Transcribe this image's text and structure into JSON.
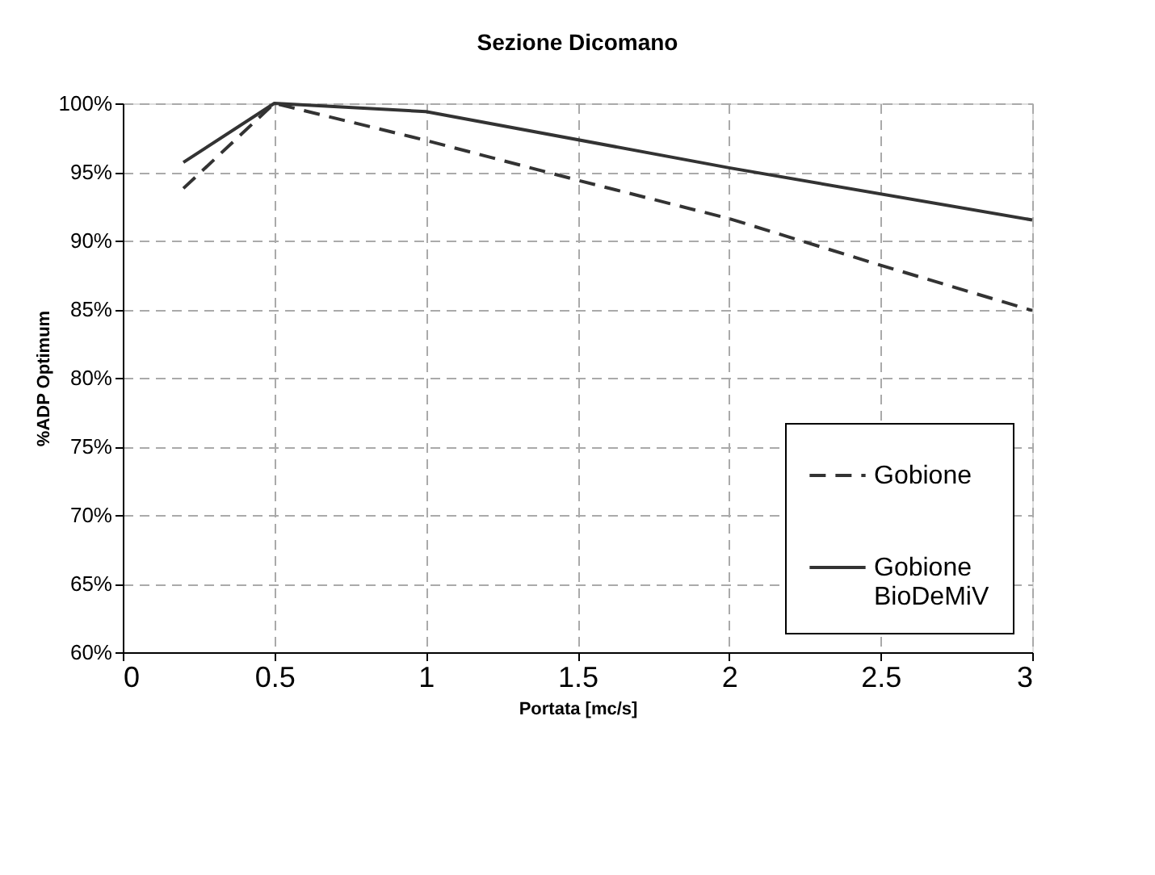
{
  "chart_data": {
    "type": "line",
    "title": "Sezione Dicomano",
    "xlabel": "Portata [mc/s]",
    "ylabel": "%ADP Optimum",
    "series": [
      {
        "name": "Gobione",
        "color": "#333333",
        "line_style": "dashed",
        "x": [
          0.2,
          0.5,
          1,
          1.5,
          2,
          2.5,
          3
        ],
        "values": [
          93.8,
          100,
          97.3,
          94.4,
          91.6,
          88.2,
          84.9
        ]
      },
      {
        "name": "Gobione BioDeMiV",
        "color": "#333333",
        "line_style": "solid",
        "x": [
          0.2,
          0.5,
          1,
          2,
          3
        ],
        "values": [
          95.7,
          100,
          99.4,
          95.3,
          91.5
        ]
      }
    ],
    "xlim": [
      0,
      3
    ],
    "xticks": [
      0,
      0.5,
      1,
      1.5,
      2,
      2.5,
      3
    ],
    "ylim": [
      60,
      100
    ],
    "yticks": [
      {
        "value": 60,
        "label": "60%"
      },
      {
        "value": 65,
        "label": "65%"
      },
      {
        "value": 70,
        "label": "70%"
      },
      {
        "value": 75,
        "label": "75%"
      },
      {
        "value": 80,
        "label": "80%"
      },
      {
        "value": 85,
        "label": "85%"
      },
      {
        "value": 90,
        "label": "90%"
      },
      {
        "value": 95,
        "label": "95%"
      },
      {
        "value": 100,
        "label": "100%"
      }
    ],
    "grid": true,
    "legend": "bottom right",
    "marker": "none"
  }
}
